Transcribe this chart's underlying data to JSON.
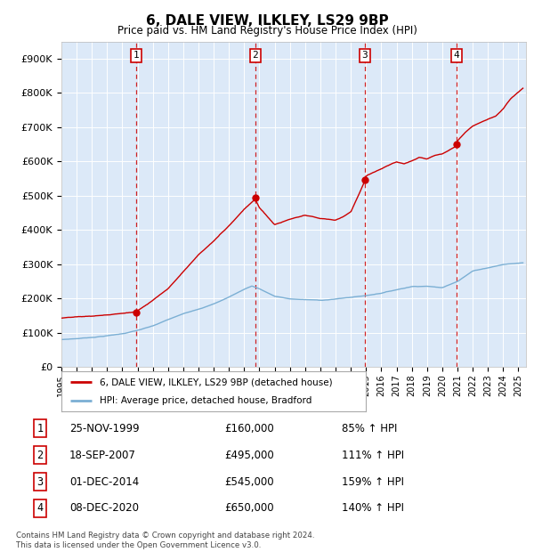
{
  "title": "6, DALE VIEW, ILKLEY, LS29 9BP",
  "subtitle": "Price paid vs. HM Land Registry's House Price Index (HPI)",
  "footer": "Contains HM Land Registry data © Crown copyright and database right 2024.\nThis data is licensed under the Open Government Licence v3.0.",
  "legend_line1": "6, DALE VIEW, ILKLEY, LS29 9BP (detached house)",
  "legend_line2": "HPI: Average price, detached house, Bradford",
  "sales": [
    {
      "num": 1,
      "date": "25-NOV-1999",
      "date_val": 1999.9,
      "price": 160000,
      "hpi_pct": "85% ↑ HPI"
    },
    {
      "num": 2,
      "date": "18-SEP-2007",
      "date_val": 2007.72,
      "price": 495000,
      "hpi_pct": "111% ↑ HPI"
    },
    {
      "num": 3,
      "date": "01-DEC-2014",
      "date_val": 2014.92,
      "price": 545000,
      "hpi_pct": "159% ↑ HPI"
    },
    {
      "num": 4,
      "date": "08-DEC-2020",
      "date_val": 2020.94,
      "price": 650000,
      "hpi_pct": "140% ↑ HPI"
    }
  ],
  "plot_bg": "#dce9f8",
  "red_line_color": "#cc0000",
  "blue_line_color": "#7bafd4",
  "dashed_line_color": "#cc0000",
  "marker_color": "#cc0000",
  "ylim": [
    0,
    950000
  ],
  "yticks": [
    0,
    100000,
    200000,
    300000,
    400000,
    500000,
    600000,
    700000,
    800000,
    900000
  ],
  "ytick_labels": [
    "£0",
    "£100K",
    "£200K",
    "£300K",
    "£400K",
    "£500K",
    "£600K",
    "£700K",
    "£800K",
    "£900K"
  ],
  "xlim_start": 1995.0,
  "xlim_end": 2025.5,
  "xticks": [
    1995,
    1996,
    1997,
    1998,
    1999,
    2000,
    2001,
    2002,
    2003,
    2004,
    2005,
    2006,
    2007,
    2008,
    2009,
    2010,
    2011,
    2012,
    2013,
    2014,
    2015,
    2016,
    2017,
    2018,
    2019,
    2020,
    2021,
    2022,
    2023,
    2024,
    2025
  ]
}
